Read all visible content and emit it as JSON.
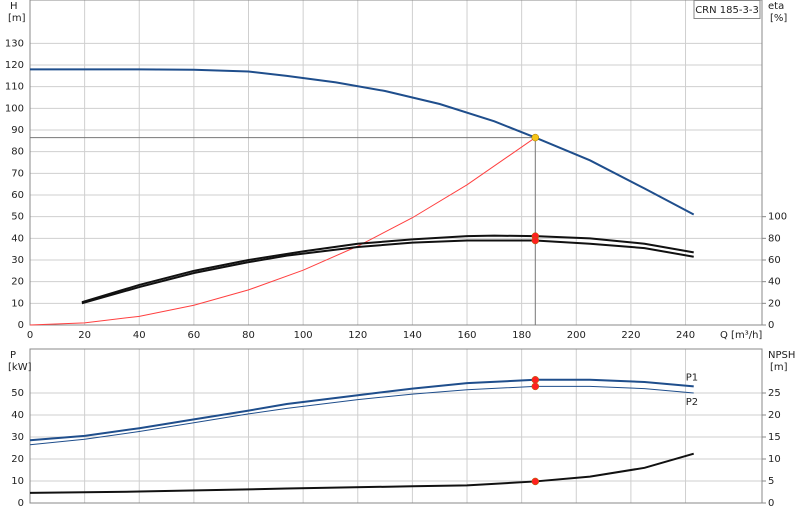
{
  "chart_data": [
    {
      "type": "line",
      "legend_box": "CRN 185-3-3",
      "y_label": "H",
      "y_unit": "[m]",
      "y2_label": "eta",
      "y2_unit": "[%]",
      "x_label": "Q [m³/h]",
      "xlim": [
        0,
        268
      ],
      "xticks": [
        0,
        20,
        40,
        60,
        80,
        100,
        120,
        140,
        160,
        180,
        200,
        220,
        240
      ],
      "ylim": [
        0,
        150
      ],
      "yticks": [
        0,
        10,
        20,
        30,
        40,
        50,
        60,
        70,
        80,
        90,
        100,
        110,
        120,
        130
      ],
      "y2lim": [
        0,
        300
      ],
      "y2ticks": [
        0,
        20,
        40,
        60,
        80,
        100
      ],
      "grid": true,
      "series": [
        {
          "color": "#1f4e8c",
          "x": [
            0,
            20,
            40,
            60,
            80,
            94,
            112,
            130,
            150,
            170,
            185,
            205,
            225,
            243
          ],
          "values": [
            118,
            118,
            118,
            117.8,
            117,
            115,
            112,
            108,
            102,
            94,
            86.5,
            76,
            63,
            51
          ]
        },
        {
          "color": "#ff4040",
          "x": [
            0,
            20,
            40,
            60,
            80,
            100,
            120,
            140,
            160,
            185
          ],
          "values": [
            0,
            1,
            4,
            9.1,
            16.2,
            25.3,
            36.4,
            49.5,
            64.7,
            86.5
          ]
        },
        {
          "color": "#111111",
          "axis": "y2",
          "x": [
            19,
            40,
            60,
            80,
            100,
            120,
            140,
            160,
            170,
            185,
            205,
            225,
            243
          ],
          "values": [
            21,
            37,
            50,
            60,
            68,
            75,
            79,
            82,
            82.5,
            82,
            80,
            75,
            67
          ]
        },
        {
          "color": "#111111",
          "axis": "y2",
          "x": [
            19,
            40,
            60,
            80,
            94,
            120,
            140,
            160,
            185,
            205,
            225,
            243
          ],
          "values": [
            20,
            35,
            48,
            58,
            64,
            72,
            76,
            78,
            78,
            75,
            71,
            63
          ]
        }
      ],
      "markers": [
        {
          "x": 185,
          "y": 86.5,
          "color": "#f5c518"
        },
        {
          "x": 185,
          "y": 82,
          "axis": "y2",
          "color": "#ff2020"
        },
        {
          "x": 185,
          "y": 78,
          "axis": "y2",
          "color": "#ff2020"
        }
      ]
    },
    {
      "type": "line",
      "y_label": "P",
      "y_unit": "[kW]",
      "y2_label": "NPSH",
      "y2_unit": "[m]",
      "xlim": [
        0,
        268
      ],
      "xticks": [
        0,
        20,
        40,
        60,
        80,
        100,
        120,
        140,
        160,
        180,
        200,
        220,
        240
      ],
      "ylim": [
        0,
        70
      ],
      "yticks": [
        0,
        10,
        20,
        30,
        40,
        50
      ],
      "y2lim": [
        0,
        35
      ],
      "y2ticks": [
        0,
        5,
        10,
        15,
        20,
        25
      ],
      "grid": true,
      "series": [
        {
          "name": "P1",
          "color": "#1f4e8c",
          "x": [
            0,
            20,
            40,
            60,
            80,
            94,
            120,
            140,
            160,
            185,
            205,
            225,
            243
          ],
          "values": [
            28.5,
            30.5,
            34,
            38,
            42,
            45,
            49,
            52,
            54.5,
            56,
            56,
            55,
            53
          ]
        },
        {
          "name": "P2",
          "color": "#1f4e8c",
          "x": [
            0,
            20,
            40,
            60,
            80,
            94,
            120,
            140,
            160,
            185,
            205,
            225,
            243
          ],
          "values": [
            26.5,
            29,
            32.5,
            36.5,
            40.5,
            43,
            47,
            49.5,
            51.5,
            53,
            53,
            52,
            50
          ]
        },
        {
          "color": "#111111",
          "axis": "y2",
          "x": [
            0,
            40,
            80,
            94,
            140,
            160,
            185,
            205,
            225,
            243
          ],
          "values": [
            2.3,
            2.6,
            3.1,
            3.3,
            3.8,
            4,
            4.9,
            6,
            8,
            11.2
          ]
        }
      ],
      "markers": [
        {
          "x": 185,
          "y": 56,
          "color": "#ff2020"
        },
        {
          "x": 185,
          "y": 53,
          "color": "#ff2020"
        },
        {
          "x": 185,
          "y": 4.9,
          "axis": "y2",
          "color": "#ff2020"
        }
      ]
    }
  ]
}
